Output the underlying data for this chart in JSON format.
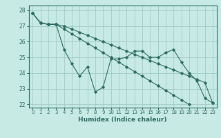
{
  "title": "",
  "xlabel": "Humidex (Indice chaleur)",
  "ylabel": "",
  "background_color": "#c8eae4",
  "grid_color": "#a0ccc8",
  "line_color": "#2a6b60",
  "xlim": [
    -0.5,
    23.5
  ],
  "ylim": [
    21.8,
    28.3
  ],
  "yticks": [
    22,
    23,
    24,
    25,
    26,
    27,
    28
  ],
  "xticks": [
    0,
    1,
    2,
    3,
    4,
    5,
    6,
    7,
    8,
    9,
    10,
    11,
    12,
    13,
    14,
    15,
    16,
    17,
    18,
    19,
    20,
    21,
    22,
    23
  ],
  "series": [
    [
      27.8,
      27.2,
      27.1,
      27.1,
      25.5,
      24.6,
      23.8,
      24.4,
      22.8,
      23.1,
      24.9,
      24.9,
      25.0,
      25.4,
      25.4,
      25.0,
      25.0,
      25.3,
      25.5,
      24.7,
      24.0,
      23.5,
      22.4,
      22.1
    ],
    [
      27.8,
      27.2,
      27.1,
      27.1,
      27.0,
      26.8,
      26.6,
      26.4,
      26.2,
      26.0,
      25.8,
      25.6,
      25.4,
      25.2,
      25.0,
      24.8,
      24.6,
      24.4,
      24.2,
      24.0,
      23.8,
      23.6,
      23.4,
      22.1
    ],
    [
      27.8,
      27.2,
      27.1,
      27.1,
      26.8,
      26.5,
      26.2,
      25.9,
      25.6,
      25.3,
      25.0,
      24.7,
      24.4,
      24.1,
      23.8,
      23.5,
      23.2,
      22.9,
      22.6,
      22.3,
      22.0,
      null,
      null,
      null
    ]
  ]
}
